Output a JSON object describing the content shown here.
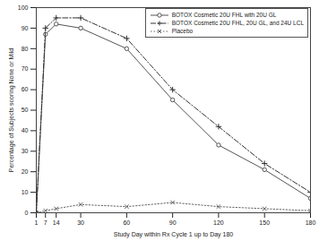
{
  "chart_data": {
    "type": "line",
    "x_label": "Study Day within Rx Cycle 1 up to Day 180",
    "y_label": "Percentage of Subjects scoring None or Mild",
    "x": [
      1,
      7,
      14,
      30,
      60,
      90,
      120,
      150,
      180
    ],
    "xlim": [
      1,
      180
    ],
    "xticks": [
      1,
      7,
      14,
      30,
      60,
      90,
      120,
      150,
      180
    ],
    "ylim": [
      0,
      100
    ],
    "yticks": [
      0,
      10,
      20,
      30,
      40,
      50,
      60,
      70,
      80,
      90,
      100
    ],
    "legend": "top-right",
    "series": [
      {
        "name": "BOTOX Cosmetic 20U FHL with 20U GL",
        "color": "#555555",
        "marker": "circle",
        "line_style": "solid",
        "values": [
          0,
          87,
          92,
          90,
          80,
          55,
          33,
          21,
          7
        ]
      },
      {
        "name": "BOTOX Cosmetic 20U FHL, 20U GL, and 24U LCL",
        "color": "#333333",
        "marker": "plus",
        "line_style": "dashdot",
        "values": [
          0,
          90,
          95,
          95,
          85,
          60,
          42,
          24,
          10
        ]
      },
      {
        "name": "Placebo",
        "color": "#666666",
        "marker": "cross",
        "line_style": "dotted",
        "values": [
          0,
          1,
          2,
          4,
          3,
          5,
          3,
          2,
          1
        ]
      }
    ]
  }
}
